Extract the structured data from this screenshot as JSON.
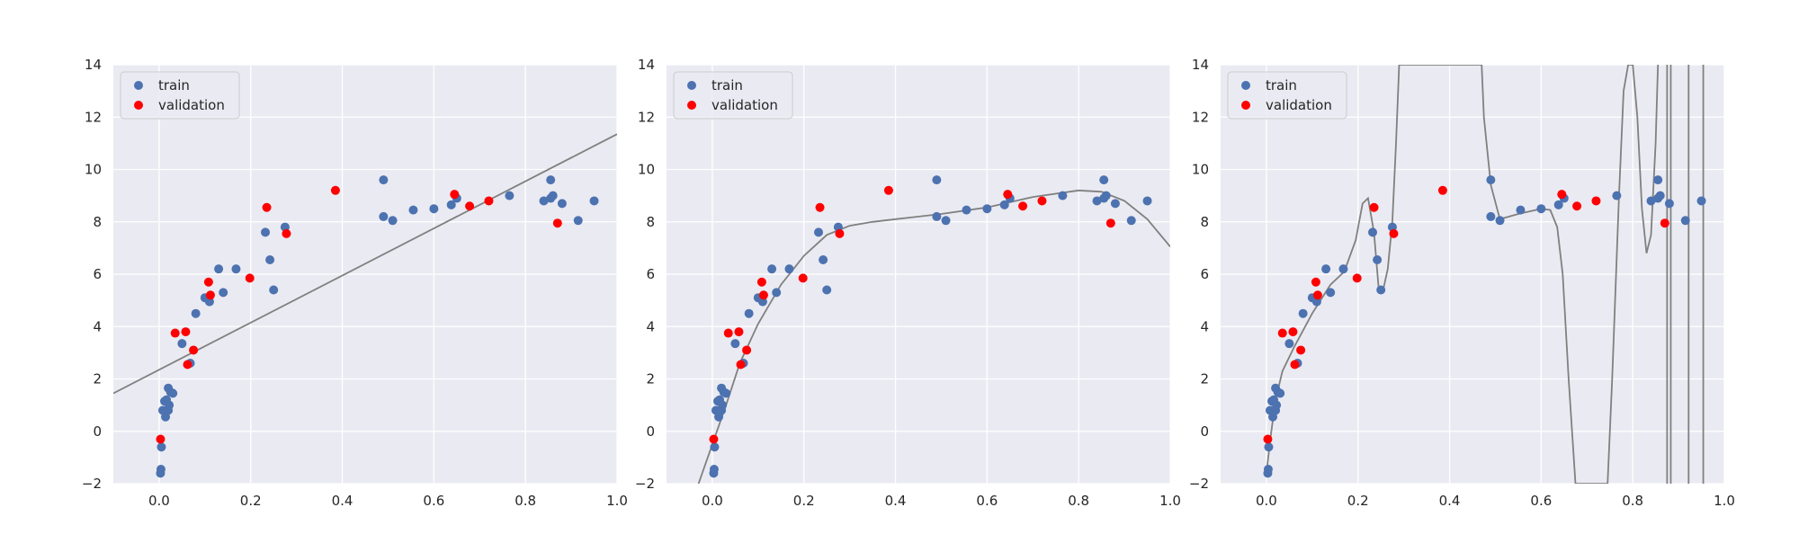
{
  "colors": {
    "axes_bg": "#eaeaf2",
    "grid": "#ffffff",
    "train": "#4c72b0",
    "validation": "#ff0000",
    "fit_line": "#808080",
    "text": "#262626"
  },
  "legend_labels": [
    "train",
    "validation"
  ],
  "chart_data": [
    {
      "type": "scatter",
      "title": "",
      "xlabel": "",
      "ylabel": "",
      "xlim": [
        -0.1,
        1.0
      ],
      "ylim": [
        -2,
        14
      ],
      "xticks": [
        "0.0",
        "0.2",
        "0.4",
        "0.6",
        "0.8",
        "1.0"
      ],
      "yticks": [
        "−2",
        "0",
        "2",
        "4",
        "6",
        "8",
        "10",
        "12",
        "14"
      ],
      "grid": true,
      "legend": "upper-left",
      "fit": {
        "kind": "linear",
        "description": "degree-1 polynomial fit"
      }
    },
    {
      "type": "scatter",
      "title": "",
      "xlabel": "",
      "ylabel": "",
      "xlim": [
        -0.1,
        1.0
      ],
      "ylim": [
        -2,
        14
      ],
      "xticks": [
        "0.0",
        "0.2",
        "0.4",
        "0.6",
        "0.8",
        "1.0"
      ],
      "yticks": [
        "−2",
        "0",
        "2",
        "4",
        "6",
        "8",
        "10",
        "12",
        "14"
      ],
      "grid": true,
      "legend": "upper-left",
      "fit": {
        "kind": "moderate-degree",
        "description": "smooth polynomial fit"
      }
    },
    {
      "type": "scatter",
      "title": "",
      "xlabel": "",
      "ylabel": "",
      "xlim": [
        -0.1,
        1.0
      ],
      "ylim": [
        -2,
        14
      ],
      "xticks": [
        "0.0",
        "0.2",
        "0.4",
        "0.6",
        "0.8",
        "1.0"
      ],
      "yticks": [
        "−2",
        "0",
        "2",
        "4",
        "6",
        "8",
        "10",
        "12",
        "14"
      ],
      "grid": true,
      "legend": "upper-left",
      "fit": {
        "kind": "high-degree",
        "description": "overfit high-degree polynomial"
      }
    }
  ],
  "series": {
    "train": {
      "name": "train",
      "points": [
        [
          0.003,
          -1.6
        ],
        [
          0.004,
          -1.45
        ],
        [
          0.005,
          -0.6
        ],
        [
          0.008,
          0.8
        ],
        [
          0.012,
          1.15
        ],
        [
          0.014,
          0.55
        ],
        [
          0.016,
          1.2
        ],
        [
          0.02,
          1.65
        ],
        [
          0.02,
          0.8
        ],
        [
          0.022,
          1.0
        ],
        [
          0.025,
          1.5
        ],
        [
          0.03,
          1.45
        ],
        [
          0.05,
          3.35
        ],
        [
          0.068,
          2.6
        ],
        [
          0.08,
          4.5
        ],
        [
          0.1,
          5.1
        ],
        [
          0.11,
          4.95
        ],
        [
          0.13,
          6.2
        ],
        [
          0.14,
          5.3
        ],
        [
          0.168,
          6.2
        ],
        [
          0.232,
          7.6
        ],
        [
          0.242,
          6.55
        ],
        [
          0.25,
          5.4
        ],
        [
          0.275,
          7.8
        ],
        [
          0.49,
          9.6
        ],
        [
          0.49,
          8.2
        ],
        [
          0.51,
          8.05
        ],
        [
          0.555,
          8.45
        ],
        [
          0.6,
          8.5
        ],
        [
          0.638,
          8.65
        ],
        [
          0.65,
          8.9
        ],
        [
          0.765,
          9.0
        ],
        [
          0.84,
          8.8
        ],
        [
          0.855,
          9.6
        ],
        [
          0.855,
          8.9
        ],
        [
          0.86,
          9.0
        ],
        [
          0.88,
          8.7
        ],
        [
          0.915,
          8.05
        ],
        [
          0.95,
          8.8
        ]
      ]
    },
    "validation": {
      "name": "validation",
      "points": [
        [
          0.003,
          -0.3
        ],
        [
          0.035,
          3.75
        ],
        [
          0.058,
          3.8
        ],
        [
          0.062,
          2.55
        ],
        [
          0.075,
          3.1
        ],
        [
          0.108,
          5.7
        ],
        [
          0.112,
          5.2
        ],
        [
          0.198,
          5.85
        ],
        [
          0.235,
          8.55
        ],
        [
          0.278,
          7.55
        ],
        [
          0.385,
          9.2
        ],
        [
          0.645,
          9.05
        ],
        [
          0.678,
          8.6
        ],
        [
          0.72,
          8.8
        ],
        [
          0.87,
          7.95
        ]
      ]
    }
  },
  "fit_curves": {
    "linear": [
      [
        -0.1,
        1.45
      ],
      [
        1.0,
        11.35
      ]
    ],
    "moderate-degree": [
      [
        -0.03,
        -2.0
      ],
      [
        0.0,
        -0.5
      ],
      [
        0.03,
        1.0
      ],
      [
        0.06,
        2.6
      ],
      [
        0.1,
        4.1
      ],
      [
        0.15,
        5.6
      ],
      [
        0.2,
        6.7
      ],
      [
        0.25,
        7.5
      ],
      [
        0.3,
        7.85
      ],
      [
        0.35,
        8.0
      ],
      [
        0.4,
        8.1
      ],
      [
        0.5,
        8.3
      ],
      [
        0.6,
        8.55
      ],
      [
        0.7,
        8.95
      ],
      [
        0.8,
        9.2
      ],
      [
        0.85,
        9.15
      ],
      [
        0.9,
        8.8
      ],
      [
        0.95,
        8.1
      ],
      [
        1.0,
        7.05
      ]
    ],
    "high-degree": [
      [
        0.0,
        -1.6
      ],
      [
        0.01,
        -0.1
      ],
      [
        0.02,
        1.2
      ],
      [
        0.035,
        2.3
      ],
      [
        0.06,
        3.2
      ],
      [
        0.1,
        4.5
      ],
      [
        0.14,
        5.6
      ],
      [
        0.17,
        6.1
      ],
      [
        0.195,
        7.3
      ],
      [
        0.21,
        8.7
      ],
      [
        0.222,
        8.9
      ],
      [
        0.235,
        7.6
      ],
      [
        0.245,
        5.5
      ],
      [
        0.255,
        5.4
      ],
      [
        0.265,
        6.2
      ],
      [
        0.275,
        8.0
      ],
      [
        0.283,
        11.0
      ],
      [
        0.29,
        14.0
      ],
      [
        0.47,
        14.0
      ],
      [
        0.475,
        12.0
      ],
      [
        0.49,
        9.4
      ],
      [
        0.51,
        8.1
      ],
      [
        0.55,
        8.3
      ],
      [
        0.6,
        8.5
      ],
      [
        0.62,
        8.45
      ],
      [
        0.635,
        7.8
      ],
      [
        0.647,
        6.0
      ],
      [
        0.66,
        2.0
      ],
      [
        0.675,
        -2.0
      ],
      [
        0.745,
        -2.0
      ],
      [
        0.755,
        2.0
      ],
      [
        0.77,
        9.0
      ],
      [
        0.78,
        13.0
      ],
      [
        0.79,
        14.0
      ],
      [
        0.8,
        14.0
      ],
      [
        0.81,
        12.0
      ],
      [
        0.82,
        8.5
      ],
      [
        0.83,
        6.8
      ],
      [
        0.84,
        7.5
      ],
      [
        0.85,
        11.0
      ],
      [
        0.855,
        14.0
      ]
    ],
    "high-degree-vertical": [
      0.875,
      0.883,
      0.922,
      0.954
    ]
  }
}
